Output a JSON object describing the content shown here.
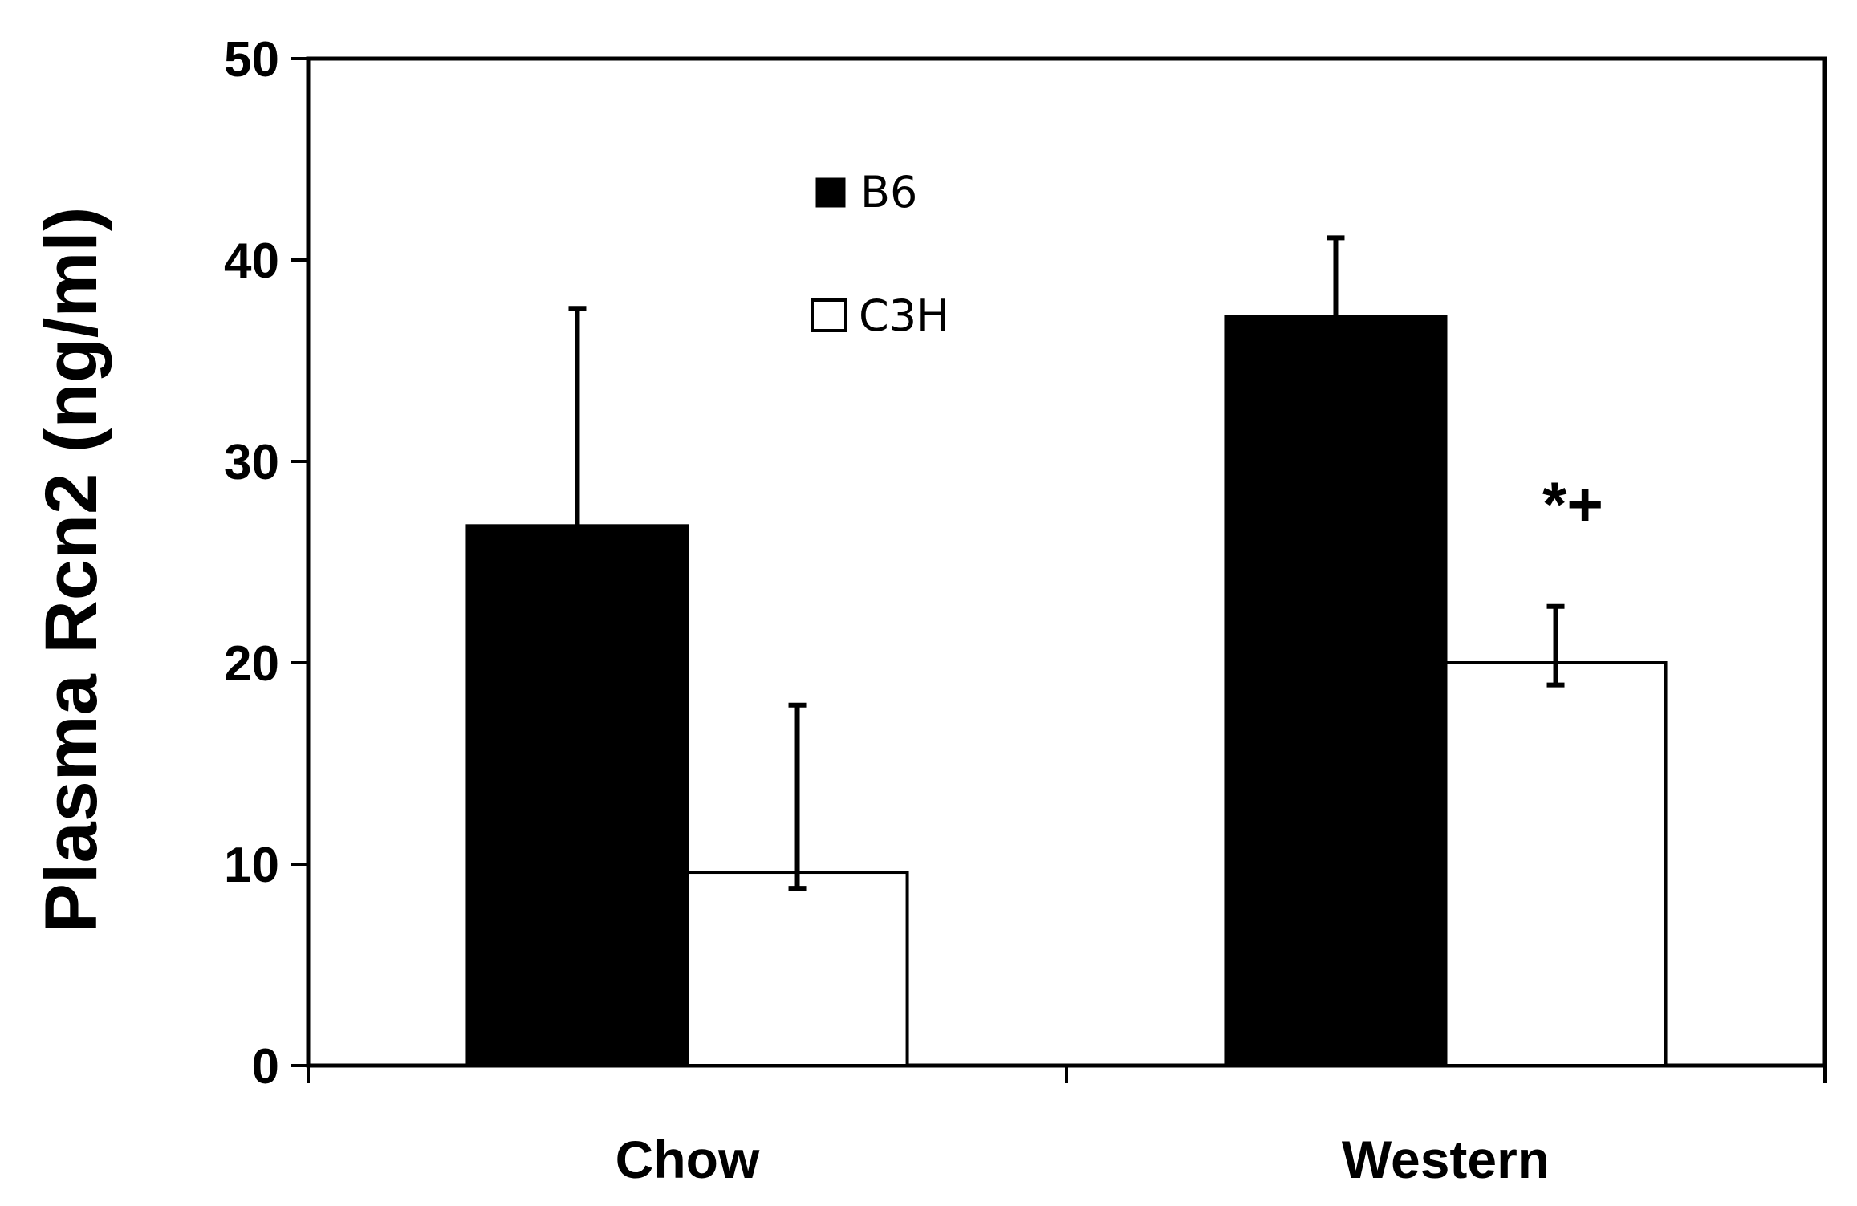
{
  "chart_data": {
    "type": "bar",
    "categories": [
      "Chow",
      "Western"
    ],
    "series": [
      {
        "name": "B6",
        "values": [
          26.8,
          37.2
        ],
        "error_upper": [
          37.6,
          41.1
        ],
        "color": "#000000"
      },
      {
        "name": "C3H",
        "values": [
          9.6,
          20.0
        ],
        "error_upper": [
          17.9,
          22.8
        ],
        "error_lower": [
          8.8,
          18.9
        ],
        "color": "#ffffff"
      }
    ],
    "title": "",
    "xlabel": "",
    "ylabel": "Plasma Rcn2 (ng/ml)",
    "ylim": [
      0,
      50
    ],
    "yticks": [
      "0",
      "10",
      "20",
      "30",
      "40",
      "50"
    ],
    "legend": {
      "placement": "top-center",
      "entries": [
        "B6",
        "C3H"
      ]
    },
    "annotations": [
      {
        "text": "*+",
        "category": "Western",
        "series": "C3H"
      }
    ],
    "grid": false
  }
}
